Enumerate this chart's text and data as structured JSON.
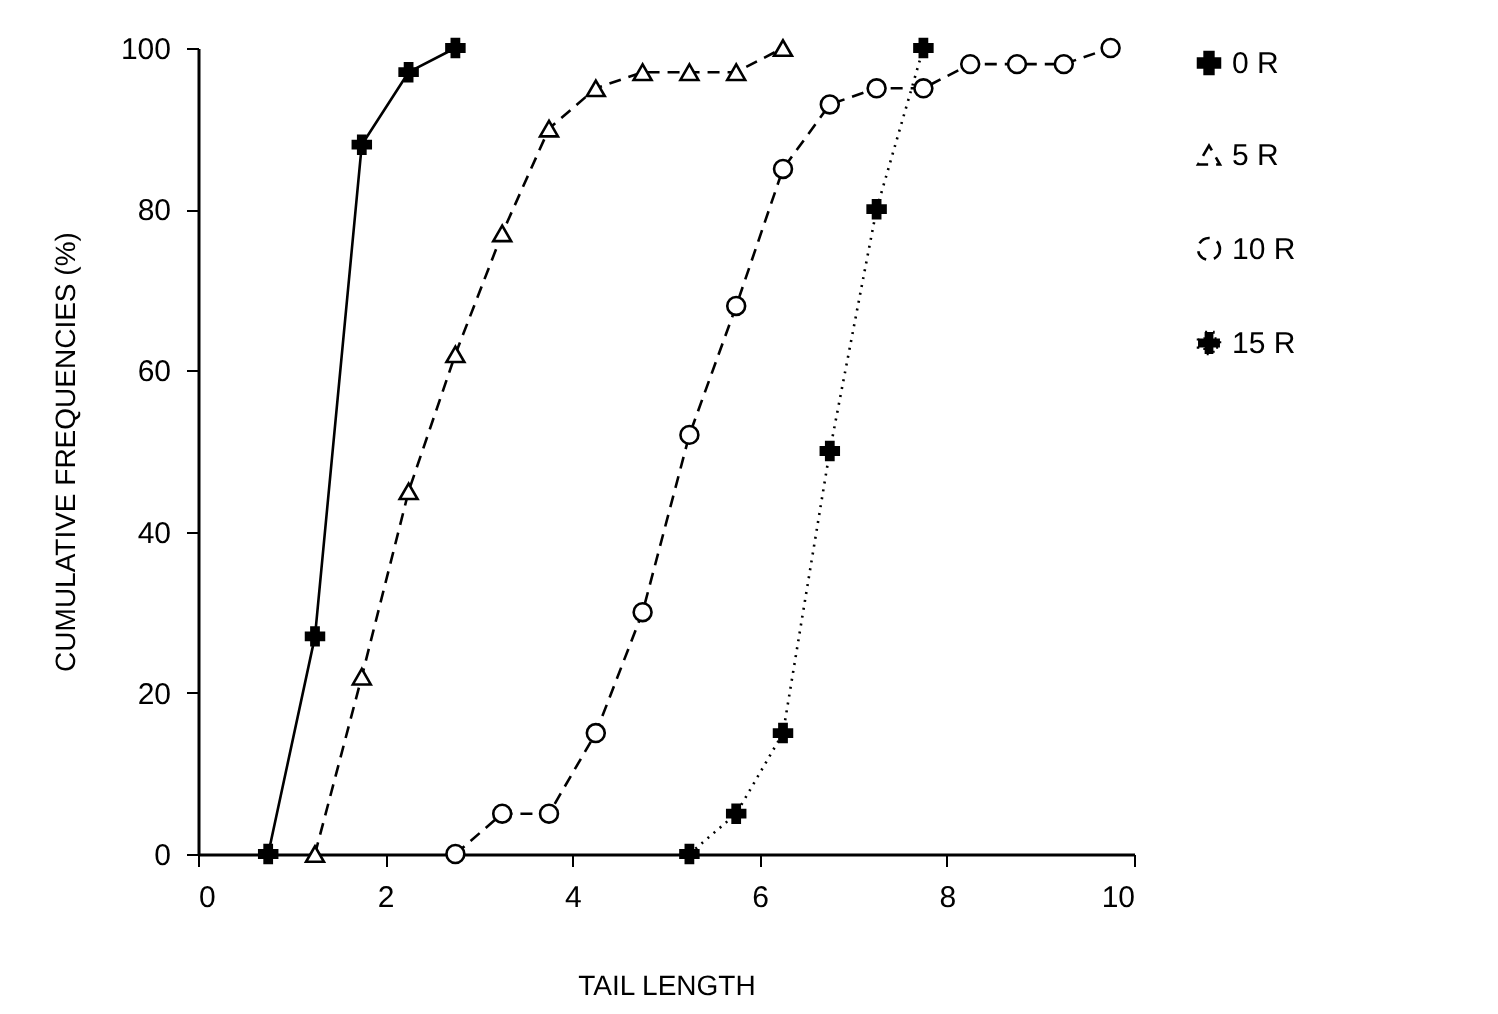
{
  "chart_data": {
    "type": "line",
    "xlabel": "TAIL LENGTH",
    "ylabel": "CUMULATIVE FREQUENCIES (%)",
    "xlim": [
      0,
      10
    ],
    "xticks": [
      0,
      2,
      4,
      6,
      8,
      10
    ],
    "ylim": [
      0,
      100
    ],
    "yticks": [
      0,
      20,
      40,
      60,
      80,
      100
    ],
    "grid": false,
    "legend": "right",
    "series": [
      {
        "name": "0 R",
        "color": "#000000",
        "marker": "cross",
        "line_style": "solid",
        "x": [
          0.75,
          1.25,
          1.75,
          2.25,
          2.75
        ],
        "values": [
          0,
          27,
          88,
          97,
          100
        ]
      },
      {
        "name": "5 R",
        "color": "#000000",
        "marker": "triangle",
        "line_style": "dashed",
        "x": [
          1.25,
          1.75,
          2.25,
          2.75,
          3.25,
          3.75,
          4.25,
          4.75,
          5.25,
          5.75,
          6.25
        ],
        "values": [
          0,
          22,
          45,
          62,
          77,
          90,
          95,
          97,
          97,
          97,
          100
        ]
      },
      {
        "name": "10 R",
        "color": "#000000",
        "marker": "circle",
        "line_style": "dashed",
        "x": [
          2.75,
          3.25,
          3.75,
          4.25,
          4.75,
          5.25,
          5.75,
          6.25,
          6.75,
          7.25,
          7.75,
          8.25,
          8.75,
          9.25,
          9.75
        ],
        "values": [
          0,
          5,
          5,
          15,
          30,
          52,
          68,
          85,
          93,
          95,
          95,
          98,
          98,
          98,
          100
        ]
      },
      {
        "name": "15 R",
        "color": "#000000",
        "marker": "cross",
        "line_style": "dotted",
        "x": [
          5.25,
          5.75,
          6.25,
          6.75,
          7.25,
          7.75
        ],
        "values": [
          0,
          5,
          15,
          50,
          80,
          100
        ]
      }
    ]
  }
}
